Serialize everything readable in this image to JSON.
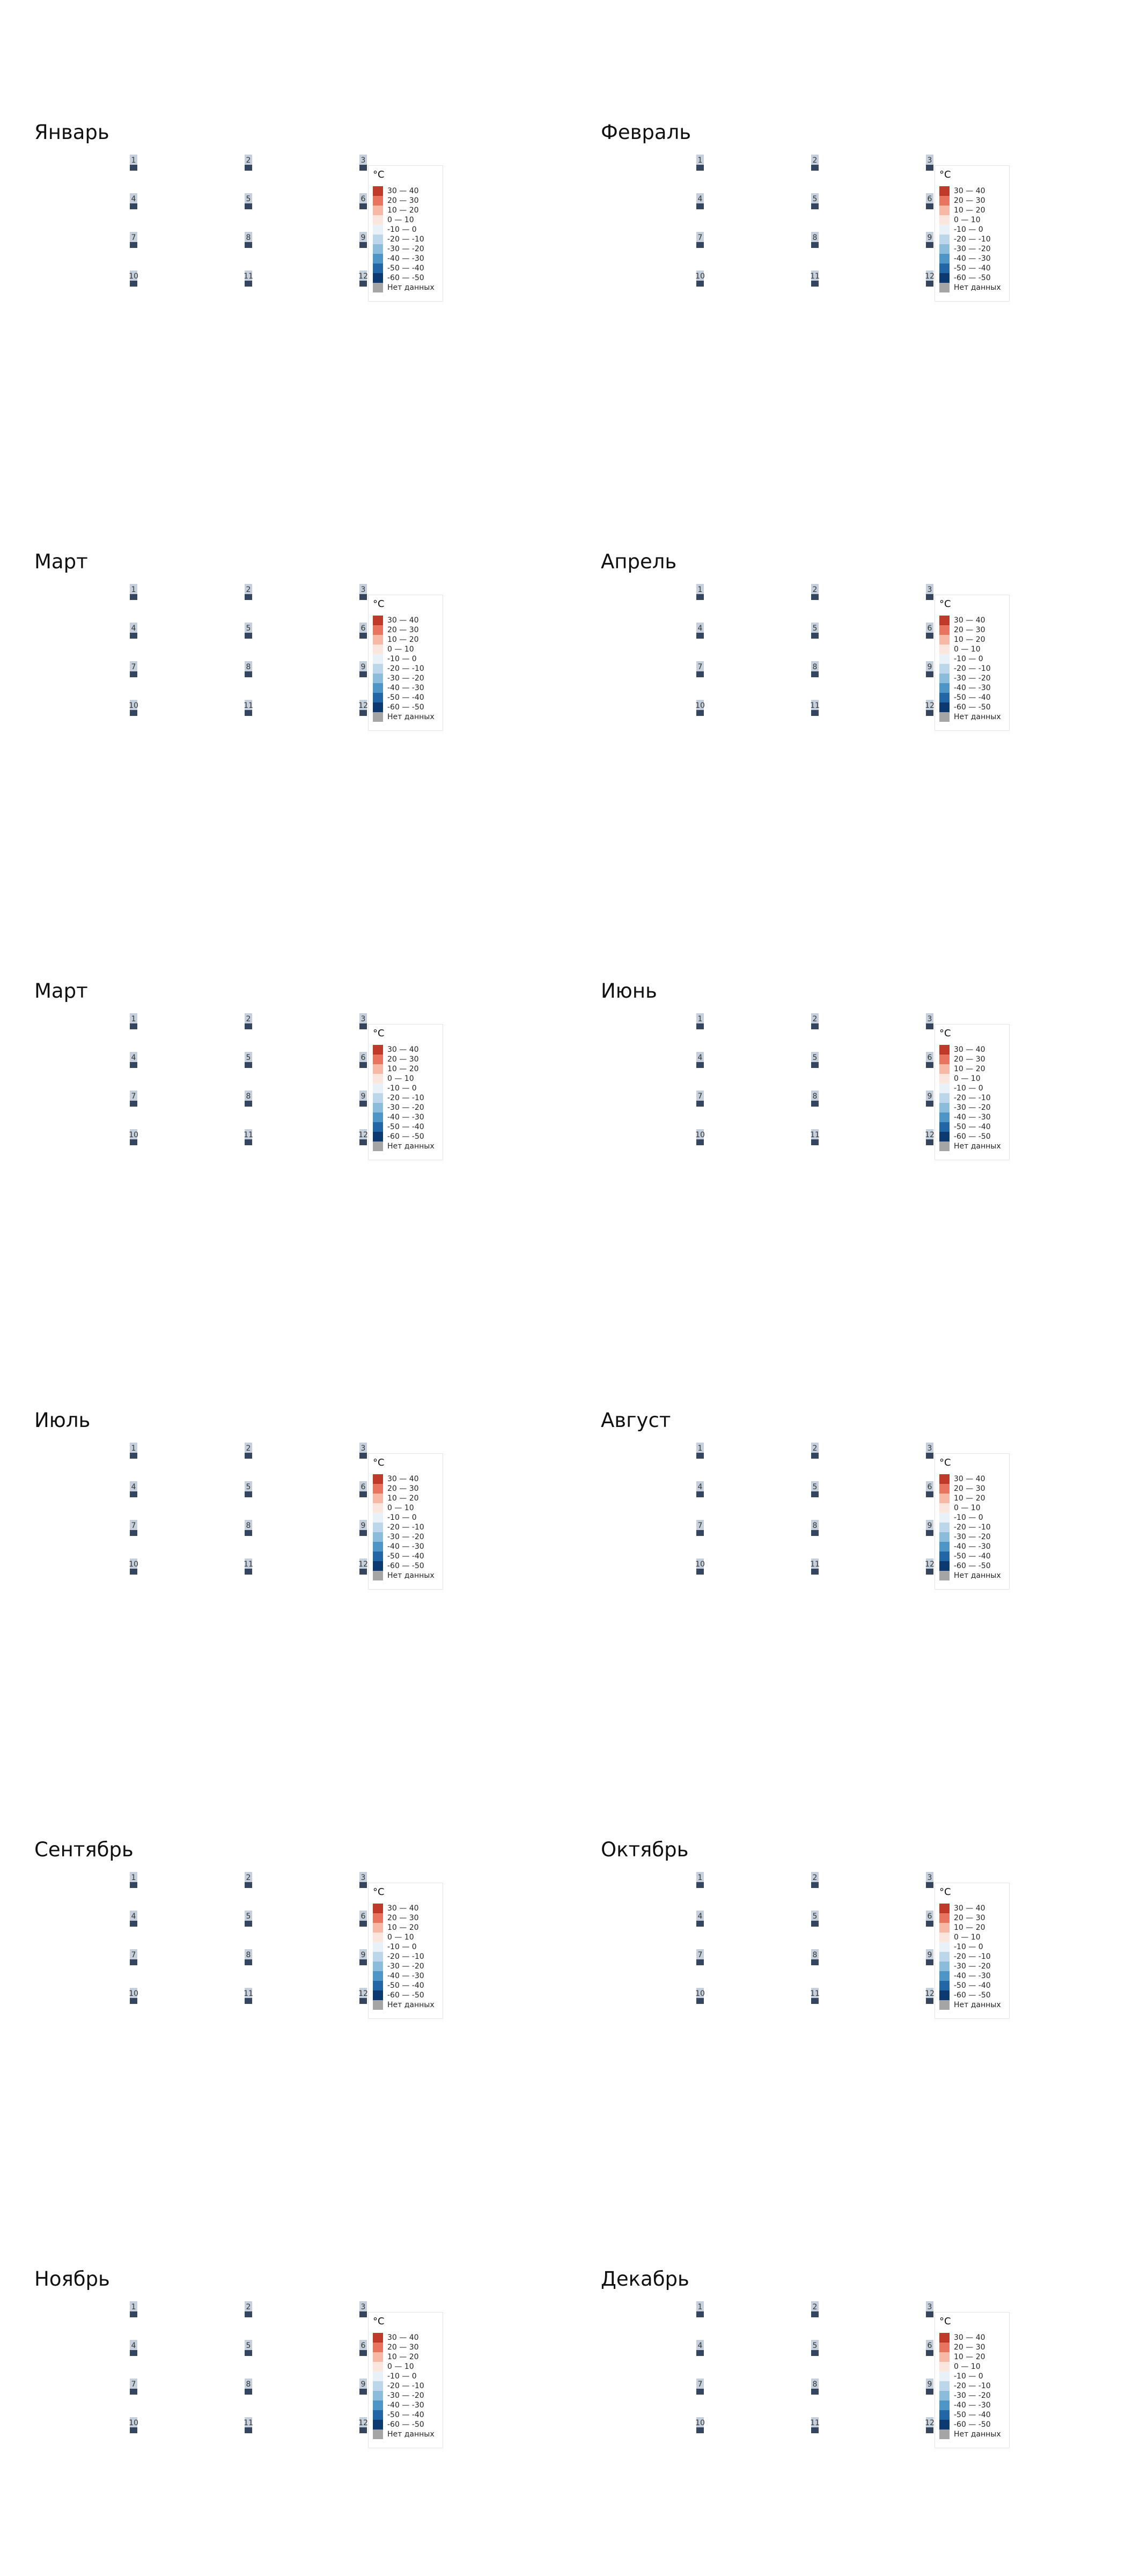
{
  "chart_data": [
    {
      "type": "heatmap",
      "title": "Январь",
      "cells": [
        {
          "label": "1",
          "value": null
        },
        {
          "label": "2",
          "value": null
        },
        {
          "label": "3",
          "value": null
        },
        {
          "label": "4",
          "value": null
        },
        {
          "label": "5",
          "value": null
        },
        {
          "label": "6",
          "value": null
        },
        {
          "label": "7",
          "value": null
        },
        {
          "label": "8",
          "value": null
        },
        {
          "label": "9",
          "value": null
        },
        {
          "label": "10",
          "value": null
        },
        {
          "label": "11",
          "value": null
        },
        {
          "label": "12",
          "value": null
        }
      ]
    },
    {
      "type": "heatmap",
      "title": "Февраль",
      "cells": [
        {
          "label": "1",
          "value": null
        },
        {
          "label": "2",
          "value": null
        },
        {
          "label": "3",
          "value": null
        },
        {
          "label": "4",
          "value": null
        },
        {
          "label": "5",
          "value": null
        },
        {
          "label": "6",
          "value": null
        },
        {
          "label": "7",
          "value": null
        },
        {
          "label": "8",
          "value": null
        },
        {
          "label": "9",
          "value": null
        },
        {
          "label": "10",
          "value": null
        },
        {
          "label": "11",
          "value": null
        },
        {
          "label": "12",
          "value": null
        }
      ]
    },
    {
      "type": "heatmap",
      "title": "Март",
      "cells": [
        {
          "label": "1",
          "value": null
        },
        {
          "label": "2",
          "value": null
        },
        {
          "label": "3",
          "value": null
        },
        {
          "label": "4",
          "value": null
        },
        {
          "label": "5",
          "value": null
        },
        {
          "label": "6",
          "value": null
        },
        {
          "label": "7",
          "value": null
        },
        {
          "label": "8",
          "value": null
        },
        {
          "label": "9",
          "value": null
        },
        {
          "label": "10",
          "value": null
        },
        {
          "label": "11",
          "value": null
        },
        {
          "label": "12",
          "value": null
        }
      ]
    },
    {
      "type": "heatmap",
      "title": "Апрель",
      "cells": [
        {
          "label": "1",
          "value": null
        },
        {
          "label": "2",
          "value": null
        },
        {
          "label": "3",
          "value": null
        },
        {
          "label": "4",
          "value": null
        },
        {
          "label": "5",
          "value": null
        },
        {
          "label": "6",
          "value": null
        },
        {
          "label": "7",
          "value": null
        },
        {
          "label": "8",
          "value": null
        },
        {
          "label": "9",
          "value": null
        },
        {
          "label": "10",
          "value": null
        },
        {
          "label": "11",
          "value": null
        },
        {
          "label": "12",
          "value": null
        }
      ]
    },
    {
      "type": "heatmap",
      "title": "Март",
      "cells": [
        {
          "label": "1",
          "value": null
        },
        {
          "label": "2",
          "value": null
        },
        {
          "label": "3",
          "value": null
        },
        {
          "label": "4",
          "value": null
        },
        {
          "label": "5",
          "value": null
        },
        {
          "label": "6",
          "value": null
        },
        {
          "label": "7",
          "value": null
        },
        {
          "label": "8",
          "value": null
        },
        {
          "label": "9",
          "value": null
        },
        {
          "label": "10",
          "value": null
        },
        {
          "label": "11",
          "value": null
        },
        {
          "label": "12",
          "value": null
        }
      ]
    },
    {
      "type": "heatmap",
      "title": "Июнь",
      "cells": [
        {
          "label": "1",
          "value": null
        },
        {
          "label": "2",
          "value": null
        },
        {
          "label": "3",
          "value": null
        },
        {
          "label": "4",
          "value": null
        },
        {
          "label": "5",
          "value": null
        },
        {
          "label": "6",
          "value": null
        },
        {
          "label": "7",
          "value": null
        },
        {
          "label": "8",
          "value": null
        },
        {
          "label": "9",
          "value": null
        },
        {
          "label": "10",
          "value": null
        },
        {
          "label": "11",
          "value": null
        },
        {
          "label": "12",
          "value": null
        }
      ]
    },
    {
      "type": "heatmap",
      "title": "Июль",
      "cells": [
        {
          "label": "1",
          "value": null
        },
        {
          "label": "2",
          "value": null
        },
        {
          "label": "3",
          "value": null
        },
        {
          "label": "4",
          "value": null
        },
        {
          "label": "5",
          "value": null
        },
        {
          "label": "6",
          "value": null
        },
        {
          "label": "7",
          "value": null
        },
        {
          "label": "8",
          "value": null
        },
        {
          "label": "9",
          "value": null
        },
        {
          "label": "10",
          "value": null
        },
        {
          "label": "11",
          "value": null
        },
        {
          "label": "12",
          "value": null
        }
      ]
    },
    {
      "type": "heatmap",
      "title": "Август",
      "cells": [
        {
          "label": "1",
          "value": null
        },
        {
          "label": "2",
          "value": null
        },
        {
          "label": "3",
          "value": null
        },
        {
          "label": "4",
          "value": null
        },
        {
          "label": "5",
          "value": null
        },
        {
          "label": "6",
          "value": null
        },
        {
          "label": "7",
          "value": null
        },
        {
          "label": "8",
          "value": null
        },
        {
          "label": "9",
          "value": null
        },
        {
          "label": "10",
          "value": null
        },
        {
          "label": "11",
          "value": null
        },
        {
          "label": "12",
          "value": null
        }
      ]
    },
    {
      "type": "heatmap",
      "title": "Сентябрь",
      "cells": [
        {
          "label": "1",
          "value": null
        },
        {
          "label": "2",
          "value": null
        },
        {
          "label": "3",
          "value": null
        },
        {
          "label": "4",
          "value": null
        },
        {
          "label": "5",
          "value": null
        },
        {
          "label": "6",
          "value": null
        },
        {
          "label": "7",
          "value": null
        },
        {
          "label": "8",
          "value": null
        },
        {
          "label": "9",
          "value": null
        },
        {
          "label": "10",
          "value": null
        },
        {
          "label": "11",
          "value": null
        },
        {
          "label": "12",
          "value": null
        }
      ]
    },
    {
      "type": "heatmap",
      "title": "Октябрь",
      "cells": [
        {
          "label": "1",
          "value": null
        },
        {
          "label": "2",
          "value": null
        },
        {
          "label": "3",
          "value": null
        },
        {
          "label": "4",
          "value": null
        },
        {
          "label": "5",
          "value": null
        },
        {
          "label": "6",
          "value": null
        },
        {
          "label": "7",
          "value": null
        },
        {
          "label": "8",
          "value": null
        },
        {
          "label": "9",
          "value": null
        },
        {
          "label": "10",
          "value": null
        },
        {
          "label": "11",
          "value": null
        },
        {
          "label": "12",
          "value": null
        }
      ]
    },
    {
      "type": "heatmap",
      "title": "Ноябрь",
      "cells": [
        {
          "label": "1",
          "value": null
        },
        {
          "label": "2",
          "value": null
        },
        {
          "label": "3",
          "value": null
        },
        {
          "label": "4",
          "value": null
        },
        {
          "label": "5",
          "value": null
        },
        {
          "label": "6",
          "value": null
        },
        {
          "label": "7",
          "value": null
        },
        {
          "label": "8",
          "value": null
        },
        {
          "label": "9",
          "value": null
        },
        {
          "label": "10",
          "value": null
        },
        {
          "label": "11",
          "value": null
        },
        {
          "label": "12",
          "value": null
        }
      ]
    },
    {
      "type": "heatmap",
      "title": "Декабрь",
      "cells": [
        {
          "label": "1",
          "value": null
        },
        {
          "label": "2",
          "value": null
        },
        {
          "label": "3",
          "value": null
        },
        {
          "label": "4",
          "value": null
        },
        {
          "label": "5",
          "value": null
        },
        {
          "label": "6",
          "value": null
        },
        {
          "label": "7",
          "value": null
        },
        {
          "label": "8",
          "value": null
        },
        {
          "label": "9",
          "value": null
        },
        {
          "label": "10",
          "value": null
        },
        {
          "label": "11",
          "value": null
        },
        {
          "label": "12",
          "value": null
        }
      ]
    }
  ],
  "legend": {
    "title": "°C",
    "placement": "right",
    "items": [
      {
        "label": "30 — 40",
        "color": "#c0392b"
      },
      {
        "label": "20 — 30",
        "color": "#e8735f"
      },
      {
        "label": "10 — 20",
        "color": "#f7b9a6"
      },
      {
        "label": "0 — 10",
        "color": "#fbe6de"
      },
      {
        "label": "-10 — 0",
        "color": "#e9f1f8"
      },
      {
        "label": "-20 — -10",
        "color": "#bcd6ea"
      },
      {
        "label": "-30 — -20",
        "color": "#8cbcdc"
      },
      {
        "label": "-40 — -30",
        "color": "#4f95c6"
      },
      {
        "label": "-50 — -40",
        "color": "#2266a6"
      },
      {
        "label": "-60 — -50",
        "color": "#0d3a6e"
      },
      {
        "label": "Нет данных",
        "color": "#a5a5a5"
      }
    ]
  },
  "cell_colors": {
    "top": "#c6cfdc",
    "bottom": "#34465e"
  }
}
